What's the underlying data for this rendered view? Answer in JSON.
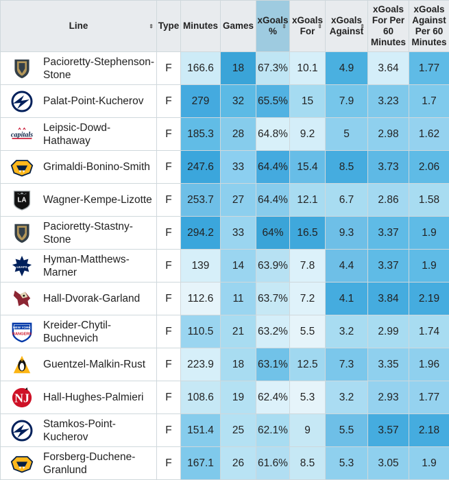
{
  "headers": {
    "line": "Line",
    "type": "Type",
    "minutes": "Minutes",
    "games": "Games",
    "xg_pct": "xGoals %",
    "xg_for": "xGoals For",
    "xg_against": "xGoals Against",
    "xg_for60": "xGoals For Per 60 Minutes",
    "xg_against60": "xGoals Against Per 60 Minutes"
  },
  "sort_icon": "⇕",
  "colors": {
    "header_bg": "#e8ebee",
    "sorted_header_bg": "#9ecbe0",
    "scale_low": "#e6f4fa",
    "scale_high": "#3aa4d8"
  },
  "rows": [
    {
      "line": "Pacioretty-Stephenson-Stone",
      "team_logo": "vegas-golden-knights-logo",
      "type": "F",
      "minutes": "166.6",
      "games": "18",
      "xg_pct": "67.3%",
      "xg_for": "10.1",
      "xg_against": "4.9",
      "xg_for60": "3.64",
      "xg_against60": "1.77"
    },
    {
      "line": "Palat-Point-Kucherov",
      "team_logo": "tampa-bay-lightning-logo",
      "type": "F",
      "minutes": "279",
      "games": "32",
      "xg_pct": "65.5%",
      "xg_for": "15",
      "xg_against": "7.9",
      "xg_for60": "3.23",
      "xg_against60": "1.7"
    },
    {
      "line": "Leipsic-Dowd-Hathaway",
      "team_logo": "washington-capitals-logo",
      "type": "F",
      "minutes": "185.3",
      "games": "28",
      "xg_pct": "64.8%",
      "xg_for": "9.2",
      "xg_against": "5",
      "xg_for60": "2.98",
      "xg_against60": "1.62"
    },
    {
      "line": "Grimaldi-Bonino-Smith",
      "team_logo": "nashville-predators-logo",
      "type": "F",
      "minutes": "247.6",
      "games": "33",
      "xg_pct": "64.4%",
      "xg_for": "15.4",
      "xg_against": "8.5",
      "xg_for60": "3.73",
      "xg_against60": "2.06"
    },
    {
      "line": "Wagner-Kempe-Lizotte",
      "team_logo": "los-angeles-kings-logo",
      "type": "F",
      "minutes": "253.7",
      "games": "27",
      "xg_pct": "64.4%",
      "xg_for": "12.1",
      "xg_against": "6.7",
      "xg_for60": "2.86",
      "xg_against60": "1.58"
    },
    {
      "line": "Pacioretty-Stastny-Stone",
      "team_logo": "vegas-golden-knights-logo",
      "type": "F",
      "minutes": "294.2",
      "games": "33",
      "xg_pct": "64%",
      "xg_for": "16.5",
      "xg_against": "9.3",
      "xg_for60": "3.37",
      "xg_against60": "1.9"
    },
    {
      "line": "Hyman-Matthews-Marner",
      "team_logo": "toronto-maple-leafs-logo",
      "type": "F",
      "minutes": "139",
      "games": "14",
      "xg_pct": "63.9%",
      "xg_for": "7.8",
      "xg_against": "4.4",
      "xg_for60": "3.37",
      "xg_against60": "1.9"
    },
    {
      "line": "Hall-Dvorak-Garland",
      "team_logo": "arizona-coyotes-logo",
      "type": "F",
      "minutes": "112.6",
      "games": "11",
      "xg_pct": "63.7%",
      "xg_for": "7.2",
      "xg_against": "4.1",
      "xg_for60": "3.84",
      "xg_against60": "2.19"
    },
    {
      "line": "Kreider-Chytil-Buchnevich",
      "team_logo": "new-york-rangers-logo",
      "type": "F",
      "minutes": "110.5",
      "games": "21",
      "xg_pct": "63.2%",
      "xg_for": "5.5",
      "xg_against": "3.2",
      "xg_for60": "2.99",
      "xg_against60": "1.74"
    },
    {
      "line": "Guentzel-Malkin-Rust",
      "team_logo": "pittsburgh-penguins-logo",
      "type": "F",
      "minutes": "223.9",
      "games": "18",
      "xg_pct": "63.1%",
      "xg_for": "12.5",
      "xg_against": "7.3",
      "xg_for60": "3.35",
      "xg_against60": "1.96"
    },
    {
      "line": "Hall-Hughes-Palmieri",
      "team_logo": "new-jersey-devils-logo",
      "type": "F",
      "minutes": "108.6",
      "games": "19",
      "xg_pct": "62.4%",
      "xg_for": "5.3",
      "xg_against": "3.2",
      "xg_for60": "2.93",
      "xg_against60": "1.77"
    },
    {
      "line": "Stamkos-Point-Kucherov",
      "team_logo": "tampa-bay-lightning-logo",
      "type": "F",
      "minutes": "151.4",
      "games": "25",
      "xg_pct": "62.1%",
      "xg_for": "9",
      "xg_against": "5.5",
      "xg_for60": "3.57",
      "xg_against60": "2.18"
    },
    {
      "line": "Forsberg-Duchene-Granlund",
      "team_logo": "nashville-predators-logo",
      "type": "F",
      "minutes": "167.1",
      "games": "26",
      "xg_pct": "61.6%",
      "xg_for": "8.5",
      "xg_against": "5.3",
      "xg_for60": "3.05",
      "xg_against60": "1.9"
    }
  ]
}
